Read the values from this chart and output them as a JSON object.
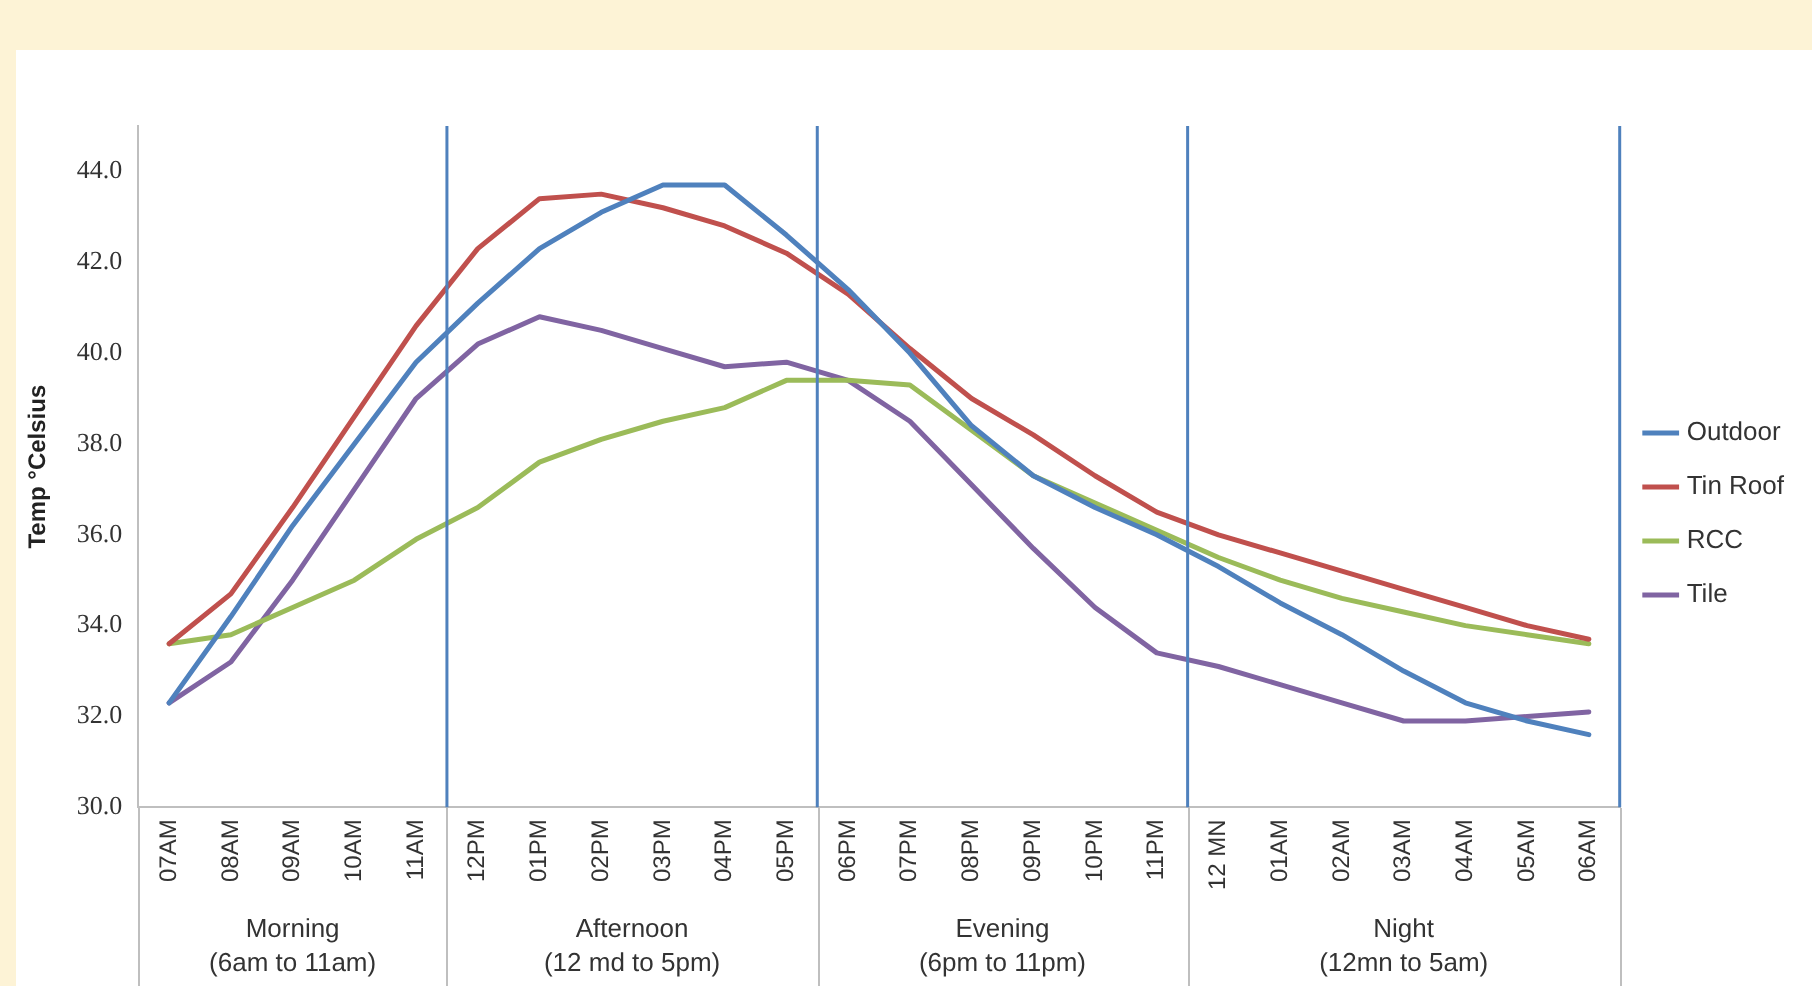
{
  "chart_data": {
    "type": "line",
    "ylabel": "Temp °Celsius",
    "categories": [
      "07AM",
      "08AM",
      "09AM",
      "10AM",
      "11AM",
      "12PM",
      "01PM",
      "02PM",
      "03PM",
      "04PM",
      "05PM",
      "06PM",
      "07PM",
      "08PM",
      "09PM",
      "10PM",
      "11PM",
      "12 MN",
      "01AM",
      "02AM",
      "03AM",
      "04AM",
      "05AM",
      "06AM"
    ],
    "series": [
      {
        "name": "Outdoor",
        "color": "#4f81bd",
        "values": [
          32.3,
          34.2,
          36.2,
          38.0,
          39.8,
          41.1,
          42.3,
          43.1,
          43.7,
          43.7,
          42.6,
          41.4,
          40.0,
          38.4,
          37.3,
          36.6,
          36.0,
          35.3,
          34.5,
          33.8,
          33.0,
          32.3,
          31.9,
          31.6
        ]
      },
      {
        "name": "Tin Roof",
        "color": "#c0504d",
        "values": [
          33.6,
          34.7,
          36.6,
          38.6,
          40.6,
          42.3,
          43.4,
          43.5,
          43.2,
          42.8,
          42.2,
          41.3,
          40.1,
          39.0,
          38.2,
          37.3,
          36.5,
          36.0,
          35.6,
          35.2,
          34.8,
          34.4,
          34.0,
          33.7
        ]
      },
      {
        "name": "RCC",
        "color": "#9bbb59",
        "values": [
          33.6,
          33.8,
          34.4,
          35.0,
          35.9,
          36.6,
          37.6,
          38.1,
          38.5,
          38.8,
          39.4,
          39.4,
          39.3,
          38.3,
          37.3,
          36.7,
          36.1,
          35.5,
          35.0,
          34.6,
          34.3,
          34.0,
          33.8,
          33.6
        ]
      },
      {
        "name": "Tile",
        "color": "#8064a2",
        "values": [
          32.3,
          33.2,
          35.0,
          37.0,
          39.0,
          40.2,
          40.8,
          40.5,
          40.1,
          39.7,
          39.8,
          39.4,
          38.5,
          37.1,
          35.7,
          34.4,
          33.4,
          33.1,
          32.7,
          32.3,
          31.9,
          31.9,
          32.0,
          32.1
        ]
      }
    ],
    "ylim": [
      30,
      45
    ],
    "yticks": [
      {
        "value": 30,
        "label": "30.0"
      },
      {
        "value": 32,
        "label": "32.0"
      },
      {
        "value": 34,
        "label": "34.0"
      },
      {
        "value": 36,
        "label": "36.0"
      },
      {
        "value": 38,
        "label": "38.0"
      },
      {
        "value": 40,
        "label": "40.0"
      },
      {
        "value": 42,
        "label": "42.0"
      },
      {
        "value": 44,
        "label": "44.0"
      }
    ],
    "annotations": [
      "Morning (6am to 11am)",
      "Afternoon (12 md to 5pm)",
      "Evening (6pm to 11pm)",
      "Night (12mn to 5am)"
    ],
    "grid": false,
    "legend": "right",
    "marker": "none",
    "line_style": "solid"
  }
}
